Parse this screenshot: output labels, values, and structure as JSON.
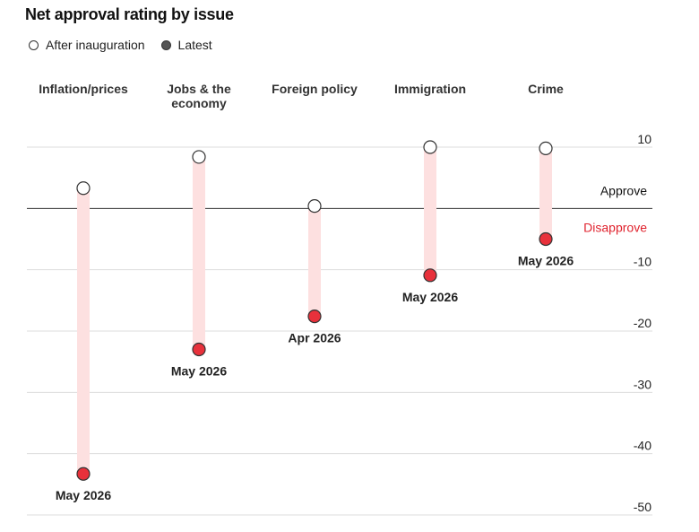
{
  "title": "Net approval rating by issue",
  "legend": {
    "after_inauguration": "After inauguration",
    "latest": "Latest"
  },
  "colors": {
    "latest_dot": "#e8313b",
    "range_bar": "#fde0e0",
    "disapprove_text": "#e0232e",
    "gridline": "#dddddd",
    "zero_line": "#333333"
  },
  "chart_data": {
    "type": "dot-range",
    "title": "Net approval rating by issue",
    "categories": [
      "Inflation/prices",
      "Jobs & the economy",
      "Foreign policy",
      "Immigration",
      "Crime"
    ],
    "category_label_lines": [
      [
        "Inflation/prices"
      ],
      [
        "Jobs & the",
        "economy"
      ],
      [
        "Foreign policy"
      ],
      [
        "Immigration"
      ],
      [
        "Crime"
      ]
    ],
    "series": [
      {
        "name": "After inauguration",
        "values": [
          3.3,
          8.4,
          0.4,
          10.0,
          9.8
        ]
      },
      {
        "name": "Latest",
        "values": [
          -43.3,
          -23.0,
          -17.6,
          -10.9,
          -5.0
        ]
      }
    ],
    "latest_labels": [
      "May 2026",
      "May 2026",
      "Apr 2026",
      "May 2026",
      "May 2026"
    ],
    "ylim": [
      -50,
      10
    ],
    "yticks": [
      10,
      -10,
      -20,
      -30,
      -40,
      -50
    ],
    "ytick_labels": [
      "10",
      "-10",
      "-20",
      "-30",
      "-40",
      "-50"
    ],
    "zero_annotations": {
      "above": "Approve",
      "below": "Disapprove"
    },
    "grid": true
  }
}
